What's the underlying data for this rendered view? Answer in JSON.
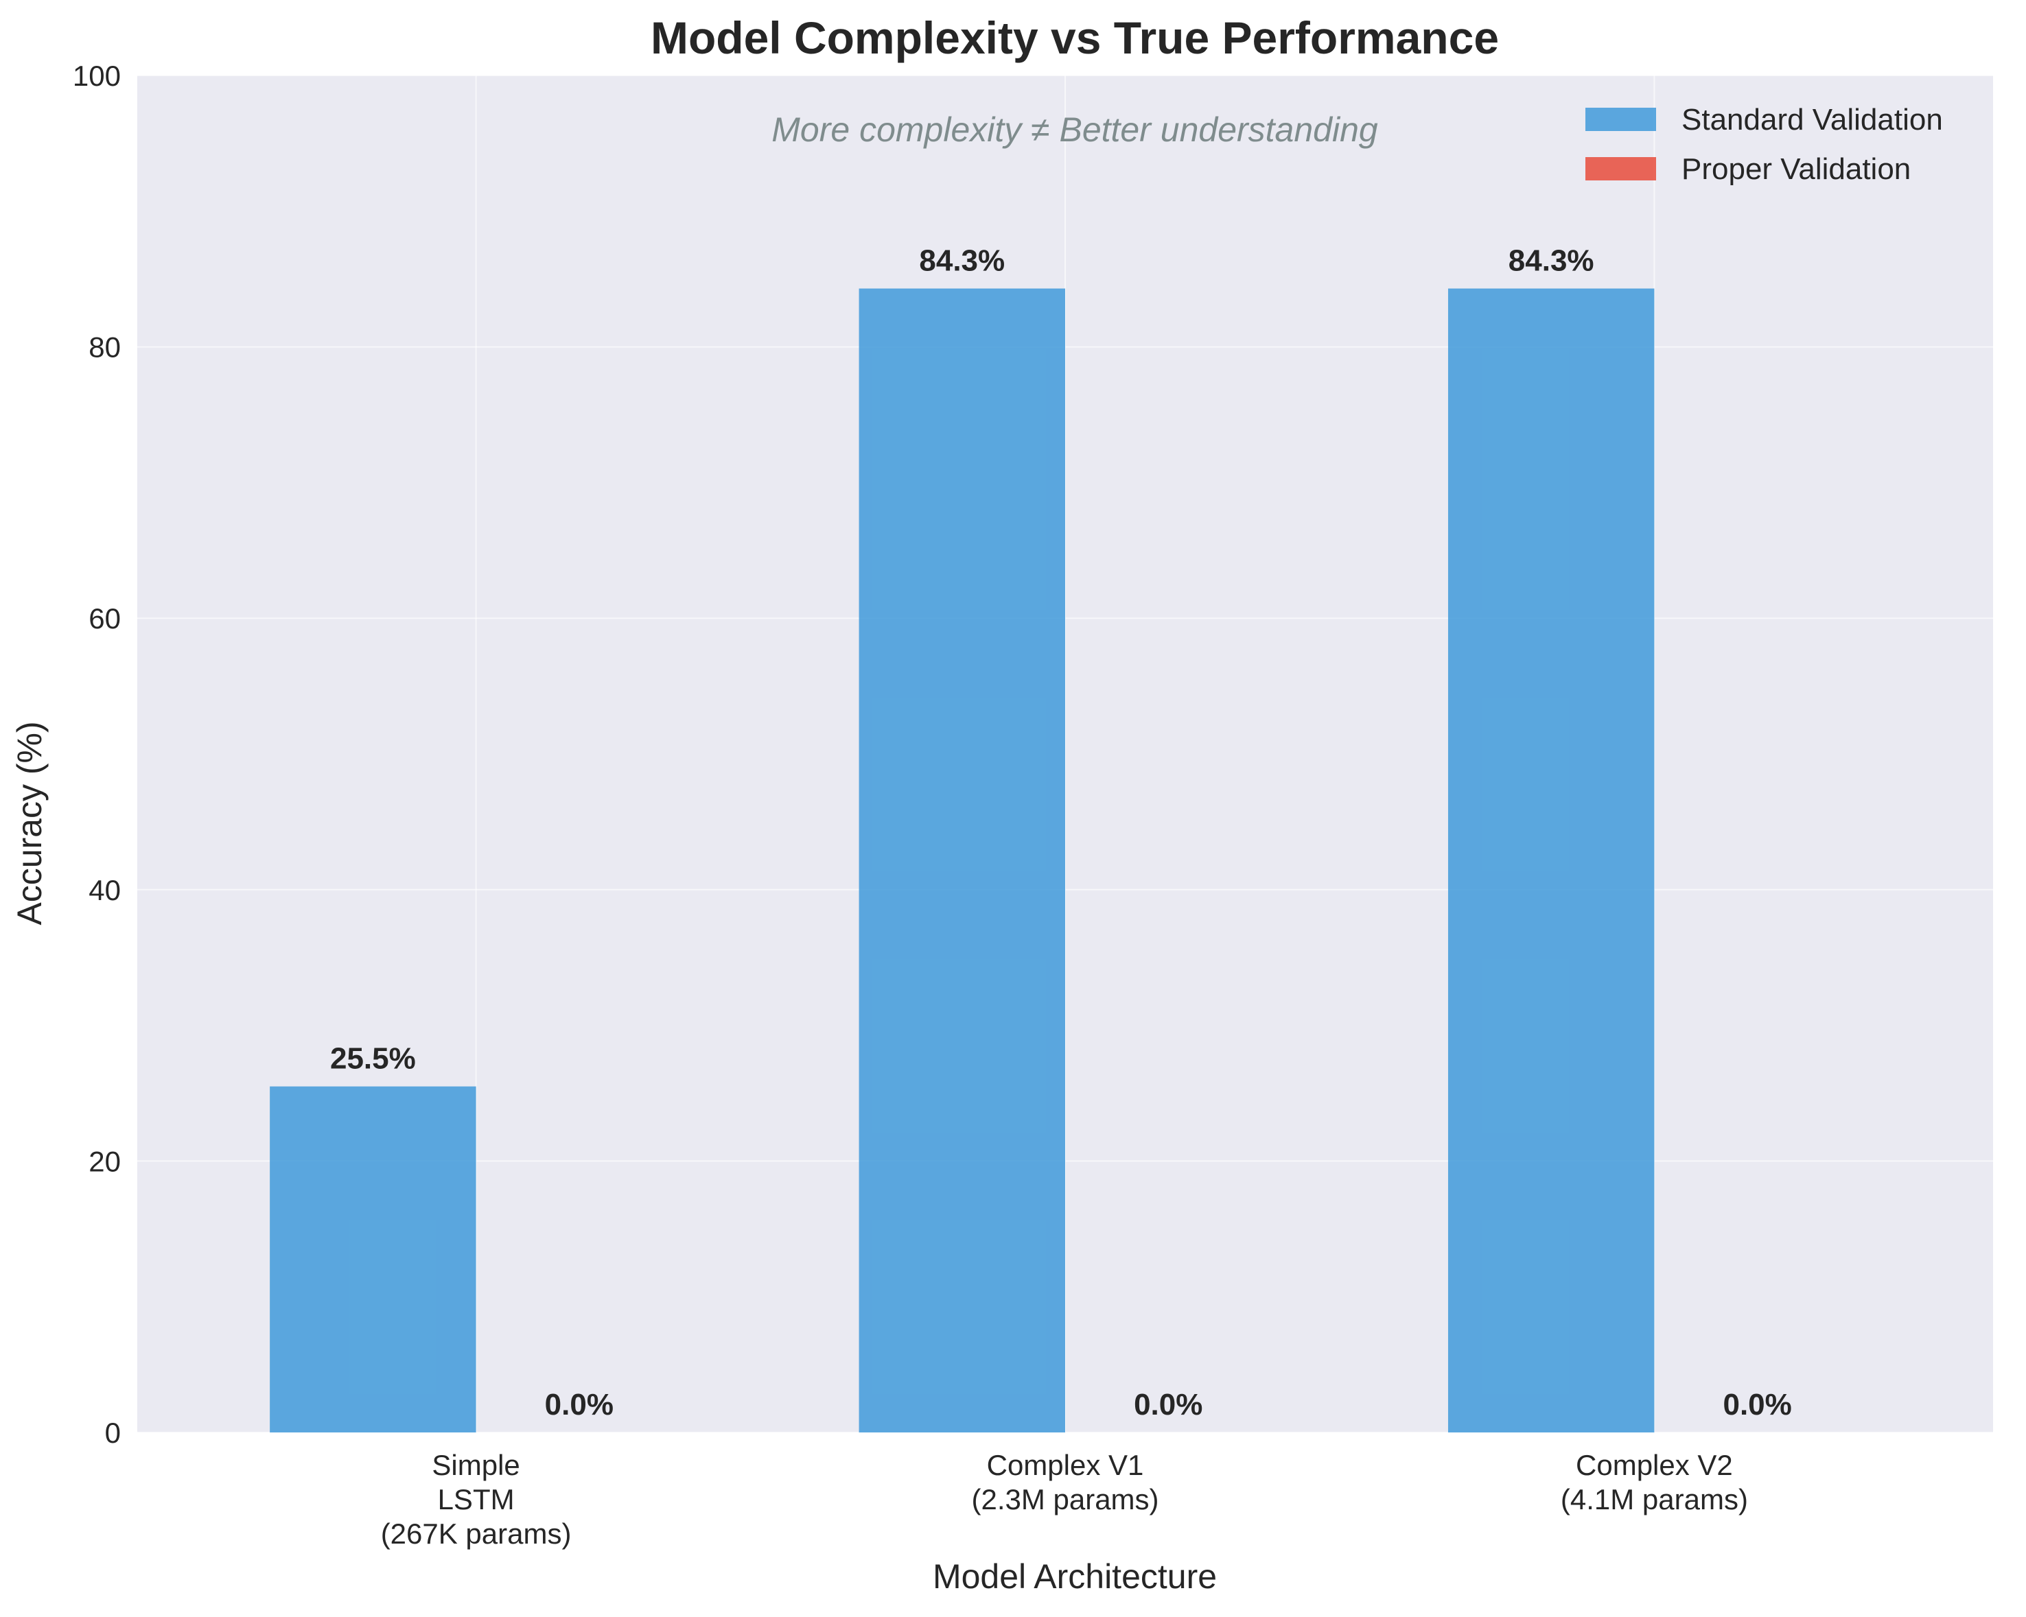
{
  "chart_data": {
    "type": "bar",
    "title": "Model Complexity vs True Performance",
    "annotation": "More complexity ≠ Better understanding",
    "xlabel": "Model Architecture",
    "ylabel": "Accuracy (%)",
    "categories": [
      [
        "Simple",
        "LSTM",
        "(267K params)"
      ],
      [
        "Complex V1",
        "(2.3M params)"
      ],
      [
        "Complex V2",
        "(4.1M params)"
      ]
    ],
    "series": [
      {
        "name": "Standard Validation",
        "values": [
          25.5,
          84.3,
          84.3
        ],
        "labels": [
          "25.5%",
          "84.3%",
          "84.3%"
        ],
        "color": "#4a9fdc"
      },
      {
        "name": "Proper Validation",
        "values": [
          0.0,
          0.0,
          0.0
        ],
        "labels": [
          "0.0%",
          "0.0%",
          "0.0%"
        ],
        "color": "#e74c3c"
      }
    ],
    "ylim": [
      0,
      100
    ],
    "yticks": [
      0,
      20,
      40,
      60,
      80,
      100
    ],
    "grid": true,
    "legend_position": "top-right",
    "colors": {
      "background": "#eaeaf2",
      "grid": "#ffffff",
      "annotation": "#7f8c8d",
      "text": "#262626"
    }
  }
}
